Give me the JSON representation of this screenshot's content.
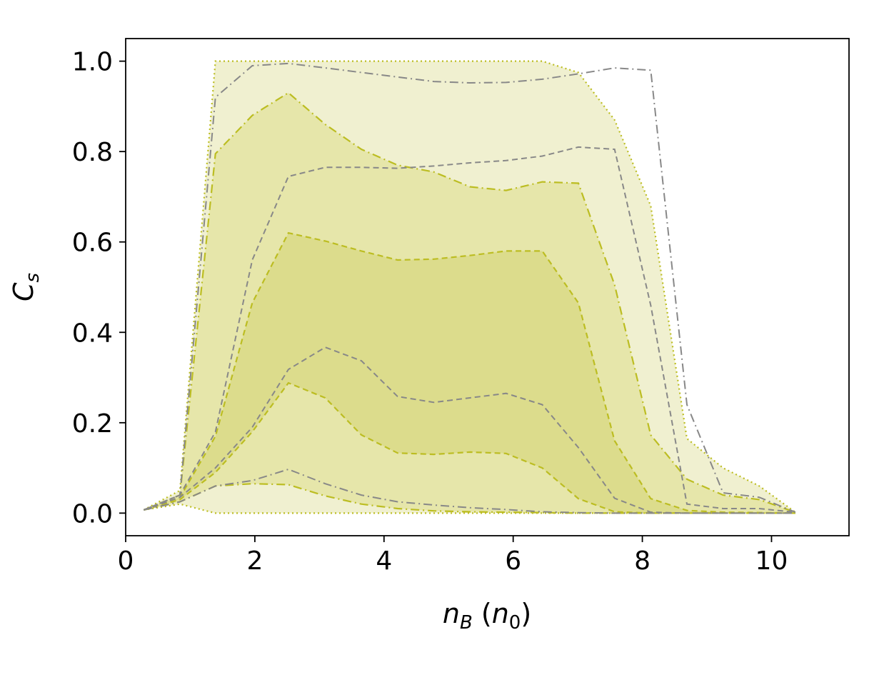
{
  "chart_data": {
    "type": "area",
    "title": "",
    "xlabel": "n_B (n_0)",
    "ylabel": "C_s",
    "xlim": [
      0,
      11.2
    ],
    "ylim": [
      -0.05,
      1.05
    ],
    "xticks": [
      0,
      2,
      4,
      6,
      8,
      10
    ],
    "yticks": [
      0.0,
      0.2,
      0.4,
      0.6,
      0.8,
      1.0
    ],
    "grid": false,
    "legend": "none",
    "colors": {
      "band_outer": "#f0f0d0",
      "band_mid": "#e6e6aa",
      "band_inner": "#dcdc8c",
      "band_line": "#bcbd22",
      "reference_line": "#888888"
    },
    "bands": [
      {
        "style": "dotted",
        "x": [
          0.28,
          0.84,
          1.39,
          1.96,
          2.52,
          3.09,
          3.65,
          4.21,
          4.77,
          5.33,
          5.89,
          6.45,
          7.01,
          7.57,
          8.13,
          8.69,
          9.25,
          9.81,
          10.37
        ],
        "upper": [
          0.007,
          0.05,
          1.0,
          1.0,
          1.0,
          1.0,
          1.0,
          1.0,
          1.0,
          1.0,
          1.0,
          1.0,
          0.975,
          0.87,
          0.68,
          0.165,
          0.1,
          0.06,
          0.002
        ],
        "lower": [
          0.007,
          0.02,
          0.0,
          0.0,
          0.0,
          0.0,
          0.0,
          0.0,
          0.0,
          0.0,
          0.0,
          0.0,
          0.0,
          0.0,
          0.0,
          0.0,
          0.0,
          0.0,
          0.0
        ]
      },
      {
        "style": "dashdot",
        "x": [
          0.28,
          0.84,
          1.39,
          1.96,
          2.52,
          3.09,
          3.65,
          4.21,
          4.77,
          5.33,
          5.89,
          6.45,
          7.01,
          7.57,
          8.13,
          8.69,
          9.25,
          9.81,
          10.37
        ],
        "upper": [
          0.007,
          0.04,
          0.795,
          0.88,
          0.93,
          0.86,
          0.805,
          0.77,
          0.755,
          0.722,
          0.714,
          0.733,
          0.73,
          0.505,
          0.173,
          0.075,
          0.04,
          0.03,
          0.002
        ],
        "lower": [
          0.007,
          0.025,
          0.06,
          0.065,
          0.063,
          0.038,
          0.02,
          0.01,
          0.005,
          0.003,
          0.002,
          0.001,
          0.0,
          0.0,
          0.0,
          0.0,
          0.0,
          0.0,
          0.0
        ]
      },
      {
        "style": "dashed",
        "x": [
          0.28,
          0.84,
          1.39,
          1.96,
          2.52,
          3.09,
          3.65,
          4.21,
          4.77,
          5.33,
          5.89,
          6.45,
          7.01,
          7.57,
          8.13,
          8.69,
          9.25,
          9.81,
          10.37
        ],
        "upper": [
          0.007,
          0.035,
          0.17,
          0.465,
          0.62,
          0.602,
          0.58,
          0.56,
          0.562,
          0.57,
          0.58,
          0.58,
          0.465,
          0.16,
          0.032,
          0.006,
          0.002,
          0.001,
          0.0
        ],
        "lower": [
          0.007,
          0.03,
          0.09,
          0.18,
          0.288,
          0.255,
          0.173,
          0.133,
          0.13,
          0.135,
          0.132,
          0.1,
          0.032,
          0.003,
          0.0,
          0.0,
          0.0,
          0.0,
          0.0
        ]
      }
    ],
    "reference_lines": [
      {
        "style": "dashdot",
        "x": [
          0.28,
          0.84,
          1.39,
          1.96,
          2.52,
          3.09,
          3.65,
          4.21,
          4.77,
          5.33,
          5.89,
          6.45,
          7.01,
          7.57,
          8.13,
          8.69,
          9.25,
          9.81,
          10.37
        ],
        "y": [
          0.007,
          0.04,
          0.92,
          0.99,
          0.995,
          0.985,
          0.975,
          0.965,
          0.955,
          0.952,
          0.953,
          0.96,
          0.972,
          0.985,
          0.98,
          0.24,
          0.045,
          0.035,
          0.002
        ]
      },
      {
        "style": "dashed",
        "x": [
          0.28,
          0.84,
          1.39,
          1.96,
          2.52,
          3.09,
          3.65,
          4.21,
          4.77,
          5.33,
          5.89,
          6.45,
          7.01,
          7.57,
          8.13,
          8.69,
          9.25,
          9.81,
          10.37
        ],
        "y": [
          0.007,
          0.04,
          0.18,
          0.56,
          0.745,
          0.765,
          0.765,
          0.763,
          0.768,
          0.775,
          0.78,
          0.79,
          0.81,
          0.805,
          0.46,
          0.02,
          0.01,
          0.01,
          0.002
        ]
      },
      {
        "style": "dashed",
        "x": [
          0.28,
          0.84,
          1.39,
          1.96,
          2.52,
          3.09,
          3.65,
          4.21,
          4.77,
          5.33,
          5.89,
          6.45,
          7.01,
          7.57,
          8.13,
          8.69,
          9.25,
          9.81,
          10.37
        ],
        "y": [
          0.007,
          0.035,
          0.1,
          0.19,
          0.318,
          0.367,
          0.337,
          0.258,
          0.245,
          0.255,
          0.265,
          0.24,
          0.145,
          0.033,
          0.002,
          0.0,
          0.0,
          0.0,
          0.0
        ]
      },
      {
        "style": "dashdot",
        "x": [
          0.28,
          0.84,
          1.39,
          1.96,
          2.52,
          3.09,
          3.65,
          4.21,
          4.77,
          5.33,
          5.89,
          6.45,
          7.01,
          7.57,
          8.13,
          8.69,
          9.25,
          9.81,
          10.37
        ],
        "y": [
          0.007,
          0.025,
          0.06,
          0.072,
          0.097,
          0.065,
          0.04,
          0.025,
          0.018,
          0.012,
          0.008,
          0.003,
          0.001,
          0.0,
          0.0,
          0.0,
          0.0,
          0.0,
          0.0
        ]
      }
    ]
  }
}
